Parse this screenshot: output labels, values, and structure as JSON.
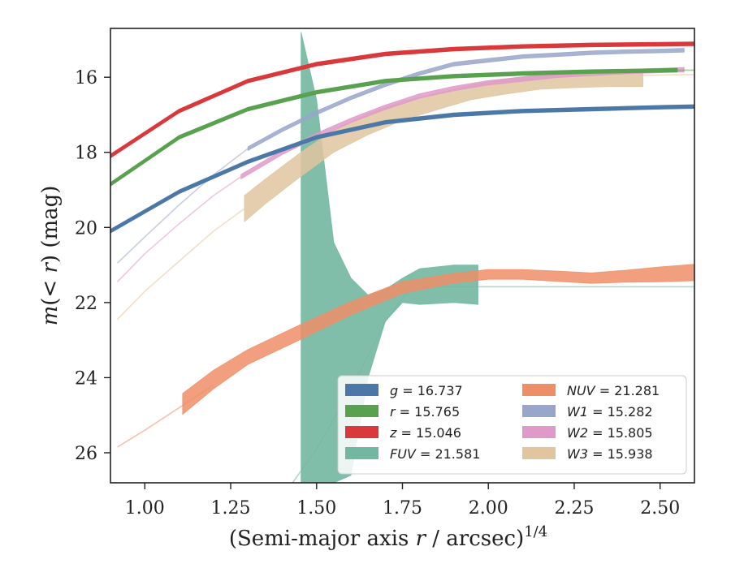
{
  "chart_data": {
    "type": "line",
    "xlabel": "(Semi-major axis r / arcsec)^{1/4}",
    "ylabel": "m(< r) (mag)",
    "xlim": [
      0.9,
      2.6
    ],
    "ylim": [
      26.8,
      14.7
    ],
    "y_inverted": true,
    "xticks": [
      1.0,
      1.25,
      1.5,
      1.75,
      2.0,
      2.25,
      2.5
    ],
    "yticks": [
      16,
      18,
      20,
      22,
      24,
      26
    ],
    "xtick_labels": [
      "1.00",
      "1.25",
      "1.50",
      "1.75",
      "2.00",
      "2.25",
      "2.50"
    ],
    "ytick_labels": [
      "16",
      "18",
      "20",
      "22",
      "24",
      "26"
    ],
    "grid": false,
    "legend": {
      "placement": "lower-right",
      "columns": 2
    },
    "series": [
      {
        "name": "g = 16.737",
        "band": "g",
        "value": "16.737",
        "color": "#4c78a8",
        "faint": {
          "x": [
            0.9,
            1.1,
            1.3,
            1.5,
            1.7,
            1.9,
            2.1,
            2.3,
            2.5,
            2.6
          ],
          "y": [
            20.1,
            19.05,
            18.25,
            17.6,
            17.2,
            17.0,
            16.9,
            16.85,
            16.8,
            16.78
          ]
        },
        "band_x": [
          0.9,
          1.1,
          1.3,
          1.5,
          1.7,
          1.9,
          2.1,
          2.3,
          2.5,
          2.6
        ],
        "band_y": [
          20.1,
          19.05,
          18.25,
          17.6,
          17.2,
          17.0,
          16.9,
          16.85,
          16.8,
          16.78
        ],
        "half_width": [
          0.05,
          0.05,
          0.05,
          0.05,
          0.05,
          0.05,
          0.05,
          0.05,
          0.05,
          0.05
        ]
      },
      {
        "name": "r = 15.765",
        "band": "r",
        "value": "15.765",
        "color": "#59a14f",
        "faint": {
          "x": [
            0.9,
            1.1,
            1.3,
            1.5,
            1.7,
            1.9,
            2.1,
            2.3,
            2.5,
            2.6
          ],
          "y": [
            18.85,
            17.6,
            16.85,
            16.4,
            16.1,
            15.97,
            15.9,
            15.85,
            15.82,
            15.81
          ]
        },
        "band_x": [
          0.9,
          1.1,
          1.3,
          1.5,
          1.7,
          1.9,
          2.1,
          2.3,
          2.5,
          2.55
        ],
        "band_y": [
          18.85,
          17.6,
          16.85,
          16.4,
          16.1,
          15.97,
          15.9,
          15.85,
          15.82,
          15.81
        ],
        "half_width": [
          0.05,
          0.05,
          0.05,
          0.05,
          0.05,
          0.05,
          0.05,
          0.05,
          0.05,
          0.05
        ]
      },
      {
        "name": "z = 15.046",
        "band": "z",
        "value": "15.046",
        "color": "#d9393b",
        "faint": {
          "x": [
            0.9,
            1.1,
            1.3,
            1.5,
            1.7,
            1.9,
            2.1,
            2.3,
            2.5,
            2.6
          ],
          "y": [
            18.1,
            16.9,
            16.1,
            15.65,
            15.38,
            15.25,
            15.18,
            15.14,
            15.12,
            15.11
          ]
        },
        "band_x": [
          0.9,
          1.1,
          1.3,
          1.5,
          1.7,
          1.9,
          2.1,
          2.3,
          2.5,
          2.6
        ],
        "band_y": [
          18.1,
          16.9,
          16.1,
          15.65,
          15.38,
          15.25,
          15.18,
          15.14,
          15.12,
          15.11
        ],
        "half_width": [
          0.05,
          0.05,
          0.05,
          0.05,
          0.05,
          0.05,
          0.05,
          0.05,
          0.05,
          0.05
        ]
      },
      {
        "name": "FUV = 21.581",
        "band": "FUV",
        "value": "21.581",
        "color": "#72b7a1",
        "faint": {
          "x": [
            1.43,
            1.5,
            1.6,
            1.7,
            1.77,
            1.85,
            2.0,
            2.3,
            2.6
          ],
          "y": [
            26.8,
            25.9,
            24.3,
            22.5,
            21.65,
            21.58,
            21.58,
            21.58,
            21.58
          ]
        },
        "band_x": [
          1.455,
          1.5,
          1.55,
          1.6,
          1.65,
          1.7,
          1.75,
          1.8,
          1.9,
          1.97
        ],
        "band_upper": [
          14.8,
          16.6,
          20.4,
          21.35,
          21.8,
          21.65,
          21.35,
          21.1,
          21.0,
          21.0
        ],
        "band_lower": [
          26.8,
          26.8,
          26.8,
          26.6,
          24.0,
          22.5,
          22.0,
          22.05,
          22.0,
          22.05
        ]
      },
      {
        "name": "NUV = 21.281",
        "band": "NUV",
        "value": "21.281",
        "color": "#ee8e67",
        "faint": {
          "x": [
            0.92,
            1.0,
            1.1,
            1.2
          ],
          "y": [
            25.85,
            25.4,
            24.8,
            24.2
          ]
        },
        "band_x": [
          1.11,
          1.2,
          1.3,
          1.45,
          1.6,
          1.75,
          1.9,
          2.0,
          2.1,
          2.2,
          2.3,
          2.4,
          2.5,
          2.6
        ],
        "band_y": [
          24.7,
          24.05,
          23.45,
          22.8,
          22.15,
          21.6,
          21.35,
          21.25,
          21.25,
          21.3,
          21.35,
          21.3,
          21.25,
          21.2
        ],
        "half_width": [
          0.28,
          0.25,
          0.2,
          0.2,
          0.18,
          0.16,
          0.13,
          0.13,
          0.13,
          0.14,
          0.14,
          0.16,
          0.2,
          0.22
        ]
      },
      {
        "name": "W1 = 15.282",
        "band": "W1",
        "value": "15.282",
        "color": "#98a6c9",
        "faint": {
          "x": [
            0.92,
            1.0,
            1.1,
            1.2,
            1.3
          ],
          "y": [
            20.95,
            20.25,
            19.4,
            18.6,
            17.9
          ]
        },
        "band_x": [
          1.3,
          1.4,
          1.5,
          1.6,
          1.7,
          1.8,
          1.9,
          2.0,
          2.1,
          2.2,
          2.3,
          2.4,
          2.5,
          2.57
        ],
        "band_y": [
          17.9,
          17.4,
          16.95,
          16.55,
          16.2,
          15.9,
          15.65,
          15.55,
          15.45,
          15.4,
          15.35,
          15.32,
          15.3,
          15.28
        ],
        "half_width": [
          0.05,
          0.05,
          0.05,
          0.05,
          0.05,
          0.05,
          0.05,
          0.05,
          0.05,
          0.05,
          0.05,
          0.05,
          0.05,
          0.05
        ]
      },
      {
        "name": "W2 = 15.805",
        "band": "W2",
        "value": "15.805",
        "color": "#df9ac8",
        "faint": {
          "x": [
            0.92,
            1.0,
            1.1,
            1.2,
            1.28
          ],
          "y": [
            21.45,
            20.7,
            19.9,
            19.15,
            18.65
          ]
        },
        "band_x": [
          1.28,
          1.4,
          1.5,
          1.6,
          1.7,
          1.8,
          1.9,
          2.0,
          2.1,
          2.2,
          2.3,
          2.4,
          2.5,
          2.57
        ],
        "band_y": [
          18.65,
          18.0,
          17.55,
          17.15,
          16.8,
          16.5,
          16.3,
          16.15,
          16.05,
          15.95,
          15.9,
          15.85,
          15.82,
          15.8
        ],
        "half_width": [
          0.06,
          0.06,
          0.06,
          0.06,
          0.06,
          0.06,
          0.06,
          0.06,
          0.06,
          0.06,
          0.06,
          0.06,
          0.06,
          0.06
        ]
      },
      {
        "name": "W3 = 15.938",
        "band": "W3",
        "value": "15.938",
        "color": "#e1c59f",
        "faint": {
          "x": [
            0.92,
            1.0,
            1.1,
            1.2,
            1.29
          ],
          "y": [
            22.45,
            21.7,
            20.9,
            20.1,
            19.5
          ]
        },
        "faint2": {
          "x": [
            2.44,
            2.5,
            2.6
          ],
          "y": [
            15.95,
            15.94,
            15.93
          ]
        },
        "band_x": [
          1.29,
          1.35,
          1.45,
          1.55,
          1.65,
          1.75,
          1.85,
          1.95,
          2.05,
          2.15,
          2.25,
          2.35,
          2.45
        ],
        "band_y": [
          19.5,
          19.05,
          18.35,
          17.7,
          17.25,
          16.9,
          16.65,
          16.4,
          16.25,
          16.12,
          16.08,
          16.05,
          16.05
        ],
        "half_width": [
          0.35,
          0.33,
          0.32,
          0.3,
          0.28,
          0.25,
          0.22,
          0.2,
          0.2,
          0.2,
          0.2,
          0.2,
          0.2
        ]
      }
    ]
  },
  "legend_entries": [
    {
      "band": "g",
      "value": "16.737",
      "color": "#4c78a8"
    },
    {
      "band": "r",
      "value": "15.765",
      "color": "#59a14f"
    },
    {
      "band": "z",
      "value": "15.046",
      "color": "#d9393b"
    },
    {
      "band": "FUV",
      "value": "21.581",
      "color": "#72b7a1"
    },
    {
      "band": "NUV",
      "value": "21.281",
      "color": "#ee8e67"
    },
    {
      "band": "W1",
      "value": "15.282",
      "color": "#98a6c9"
    },
    {
      "band": "W2",
      "value": "15.805",
      "color": "#df9ac8"
    },
    {
      "band": "W3",
      "value": "15.938",
      "color": "#e1c59f"
    }
  ]
}
